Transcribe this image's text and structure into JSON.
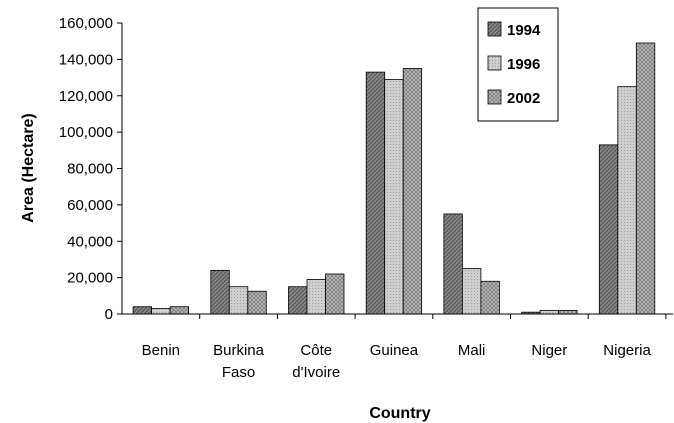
{
  "chart_data": {
    "type": "bar",
    "title": "",
    "xlabel": "Country",
    "ylabel": "Area (Hectare)",
    "ylim": [
      0,
      160000
    ],
    "yticks": [
      0,
      20000,
      40000,
      60000,
      80000,
      100000,
      120000,
      140000,
      160000
    ],
    "ytick_labels": [
      "0",
      "20,000",
      "40,000",
      "60,000",
      "80,000",
      "100,000",
      "120,000",
      "140,000",
      "160,000"
    ],
    "categories": [
      [
        "Benin"
      ],
      [
        "Burkina",
        "Faso"
      ],
      [
        "Côte",
        "d'Ivoire"
      ],
      [
        "Guinea"
      ],
      [
        "Mali"
      ],
      [
        "Niger"
      ],
      [
        "Nigeria"
      ]
    ],
    "series": [
      {
        "name": "1994",
        "color": "#6e6e6e",
        "values": [
          4000,
          24000,
          15000,
          133000,
          55000,
          1000,
          93000
        ]
      },
      {
        "name": "1996",
        "color": "#c4c4c4",
        "values": [
          3000,
          15000,
          19000,
          129000,
          25000,
          2000,
          125000
        ]
      },
      {
        "name": "2002",
        "color": "#a9a9a9",
        "values": [
          4000,
          12500,
          22000,
          135000,
          18000,
          2000,
          149000
        ]
      }
    ],
    "legend": "top-right",
    "grid": false
  }
}
